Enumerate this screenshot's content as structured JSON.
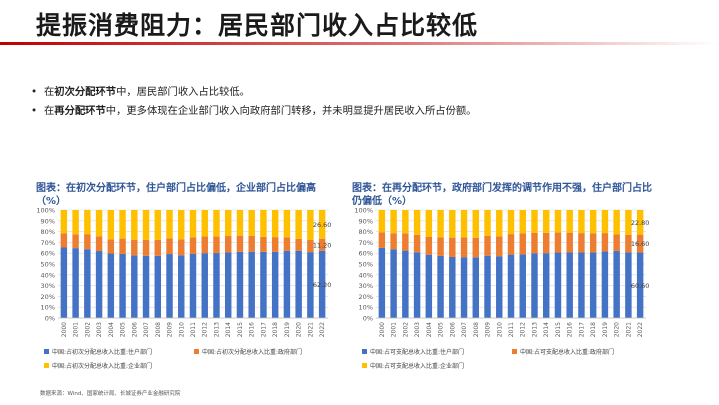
{
  "page": {
    "title": "提振消费阻力：居民部门收入占比较低",
    "bullets": [
      {
        "pre": "在",
        "bold": "初次分配环节",
        "post": "中，居民部门收入占比较低。"
      },
      {
        "pre": "在",
        "bold": "再分配环节",
        "post": "中，更多体现在企业部门收入向政府部门转移，并未明显提升居民收入所占份额。"
      }
    ],
    "source": "数据来源：Wind、国家统计局、长城证券产业金融研究院"
  },
  "colors": {
    "blue": "#4472c4",
    "orange": "#ed7d31",
    "yellow": "#ffc000",
    "title_text": "#2f5597",
    "rule_red": "#c00000"
  },
  "chart_data": [
    {
      "type": "bar",
      "stacked": true,
      "caption_line1": "图表：在初次分配环节，住户部门占比偏低，企业部门占比偏高",
      "caption_line2": "（%）",
      "categories": [
        "2000",
        "2001",
        "2002",
        "2003",
        "2004",
        "2005",
        "2006",
        "2007",
        "2008",
        "2009",
        "2010",
        "2011",
        "2012",
        "2013",
        "2014",
        "2015",
        "2016",
        "2017",
        "2018",
        "2019",
        "2020",
        "2021",
        "2022"
      ],
      "yticks": [
        "0%",
        "10%",
        "20%",
        "30%",
        "40%",
        "50%",
        "60%",
        "70%",
        "80%",
        "90%",
        "100%"
      ],
      "ylim": [
        0,
        100
      ],
      "series": [
        {
          "name": "中国:占初次分配总收入比重:住户部门",
          "color": "#4472c4",
          "values": [
            65.3,
            64.7,
            63.7,
            62.0,
            59.7,
            59.3,
            58.0,
            57.6,
            57.6,
            59.2,
            58.0,
            59.3,
            60.0,
            60.1,
            60.7,
            61.3,
            61.4,
            61.3,
            61.3,
            62.1,
            62.1,
            61.0,
            62.2
          ]
        },
        {
          "name": "中国:占初次分配总收入比重:政府部门",
          "color": "#ed7d31",
          "values": [
            13.1,
            12.7,
            13.9,
            13.6,
            13.1,
            14.2,
            14.5,
            14.7,
            14.7,
            14.6,
            14.9,
            15.4,
            15.6,
            15.3,
            15.2,
            14.9,
            14.6,
            13.8,
            13.6,
            12.6,
            11.2,
            11.2,
            11.2
          ]
        },
        {
          "name": "中国:占初次分配总收入比重:企业部门",
          "color": "#ffc000",
          "values": [
            21.6,
            22.6,
            22.4,
            24.4,
            27.2,
            26.5,
            27.5,
            27.7,
            27.7,
            26.2,
            27.1,
            25.3,
            24.4,
            24.6,
            24.1,
            23.8,
            24.0,
            24.9,
            25.1,
            25.3,
            26.7,
            27.8,
            26.6
          ]
        }
      ],
      "data_labels": [
        "26.60",
        "11.20",
        "62.20"
      ],
      "legend": [
        "中国:占初次分配总收入比重:住户部门",
        "中国:占初次分配总收入比重:政府部门",
        "中国:占初次分配总收入比重:企业部门"
      ]
    },
    {
      "type": "bar",
      "stacked": true,
      "caption_line1": "图表：在再分配环节，政府部门发挥的调节作用不强，住户部门占比",
      "caption_line2": "仍偏低（%）",
      "categories": [
        "2000",
        "2001",
        "2002",
        "2003",
        "2004",
        "2005",
        "2006",
        "2007",
        "2008",
        "2009",
        "2010",
        "2011",
        "2012",
        "2013",
        "2014",
        "2015",
        "2016",
        "2017",
        "2018",
        "2019",
        "2020",
        "2021",
        "2022"
      ],
      "yticks": [
        "0%",
        "10%",
        "20%",
        "30%",
        "40%",
        "50%",
        "60%",
        "70%",
        "80%",
        "90%",
        "100%"
      ],
      "ylim": [
        0,
        100
      ],
      "series": [
        {
          "name": "中国:占可支配总收入比重:住户部门",
          "color": "#4472c4",
          "values": [
            64.9,
            63.5,
            62.4,
            60.9,
            58.6,
            57.5,
            56.5,
            56.3,
            56.2,
            57.7,
            57.2,
            58.7,
            59.0,
            59.8,
            60.0,
            60.6,
            60.7,
            60.7,
            60.6,
            61.7,
            62.0,
            60.8,
            60.6
          ]
        },
        {
          "name": "中国:占可支配总收入比重:政府部门",
          "color": "#ed7d31",
          "values": [
            14.5,
            15.0,
            16.0,
            16.1,
            16.4,
            17.2,
            17.9,
            18.3,
            18.1,
            18.3,
            18.4,
            19.0,
            19.4,
            18.9,
            18.9,
            18.5,
            18.3,
            17.9,
            17.9,
            16.9,
            15.3,
            16.3,
            16.6
          ]
        },
        {
          "name": "中国:占可支配总收入比重:企业部门",
          "color": "#ffc000",
          "values": [
            20.6,
            21.5,
            21.6,
            23.0,
            25.0,
            25.3,
            25.6,
            25.4,
            25.7,
            24.0,
            24.4,
            22.3,
            21.6,
            21.3,
            21.1,
            20.9,
            21.0,
            21.4,
            21.5,
            21.4,
            22.7,
            22.9,
            22.8
          ]
        }
      ],
      "data_labels": [
        "22.80",
        "16.60",
        "60.60"
      ],
      "legend": [
        "中国:占可支配总收入比重:住户部门",
        "中国:占可支配总收入比重:政府部门",
        "中国:占可支配总收入比重:企业部门"
      ]
    }
  ]
}
